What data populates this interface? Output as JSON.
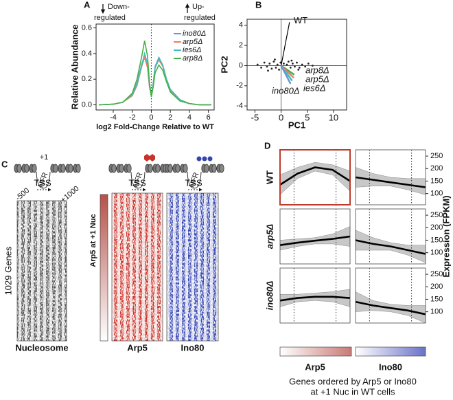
{
  "chart_data": [
    {
      "panel": "A",
      "type": "line",
      "ylabel": "Relative Abundance",
      "xlabel": "log2 Fold-Change Relative to WT",
      "annotations": [
        "Down-",
        "regulated",
        "Up-",
        "regulated"
      ],
      "x": [
        -5.5,
        -4,
        -3,
        -2,
        -1.5,
        -1,
        -0.7,
        -0.4,
        -0.2,
        0,
        0.2,
        0.4,
        0.8,
        1.2,
        1.6,
        2,
        3,
        4,
        5,
        6.3
      ],
      "series": [
        {
          "name": "ino80Δ",
          "color": "#6b96d6",
          "values": [
            0,
            0.005,
            0.02,
            0.08,
            0.17,
            0.32,
            0.38,
            0.3,
            0.15,
            0.07,
            0.17,
            0.3,
            0.37,
            0.31,
            0.2,
            0.12,
            0.04,
            0.01,
            0,
            0
          ]
        },
        {
          "name": "arp5Δ",
          "color": "#f07a6a",
          "values": [
            0,
            0.005,
            0.02,
            0.07,
            0.15,
            0.3,
            0.37,
            0.29,
            0.14,
            0.07,
            0.16,
            0.29,
            0.35,
            0.3,
            0.19,
            0.11,
            0.04,
            0.01,
            0,
            0
          ]
        },
        {
          "name": "ies6Δ",
          "color": "#3fbfb8",
          "values": [
            0,
            0.005,
            0.02,
            0.08,
            0.16,
            0.31,
            0.4,
            0.32,
            0.16,
            0.07,
            0.16,
            0.29,
            0.36,
            0.31,
            0.2,
            0.12,
            0.04,
            0.01,
            0,
            0
          ]
        },
        {
          "name": "arp8Δ",
          "color": "#45b045",
          "values": [
            0,
            0.005,
            0.02,
            0.09,
            0.2,
            0.38,
            0.5,
            0.38,
            0.18,
            0.06,
            0.14,
            0.25,
            0.31,
            0.27,
            0.18,
            0.1,
            0.03,
            0.01,
            0,
            0
          ]
        }
      ],
      "xlim": [
        -5.8,
        6.6
      ],
      "xticks": [
        -4,
        -2,
        0,
        2,
        4,
        6
      ],
      "ylim": [
        -0.04,
        0.63
      ],
      "yticks": [
        {
          "value": 0,
          "label": "0.0"
        },
        {
          "value": 0.2,
          "label": "0.2"
        },
        {
          "value": 0.4,
          "label": "0.4"
        },
        {
          "value": 0.6,
          "label": "0.6"
        }
      ],
      "vline": 0,
      "legend": "upper right"
    },
    {
      "panel": "B",
      "type": "scatter",
      "xlabel": "PC1",
      "ylabel": "PC2",
      "color": "#222222",
      "x": [
        -4.5,
        -3.8,
        -3.2,
        -2.7,
        -2.2,
        -1.8,
        -1.4,
        -1.0,
        -0.7,
        -0.4,
        -0.1,
        0.2,
        0.5,
        0.8,
        1.1,
        1.4,
        1.8,
        2.2,
        2.6,
        3.0,
        3.5,
        4.0,
        4.6,
        5.2,
        6.0,
        -2.5,
        -1.2,
        0.9,
        2.0,
        3.3
      ],
      "y": [
        0.1,
        -0.2,
        0.3,
        -0.1,
        0.2,
        -0.3,
        0.4,
        -0.2,
        0.1,
        -0.4,
        0.3,
        -0.1,
        0.2,
        -0.3,
        0.1,
        0.4,
        -0.2,
        0.2,
        -0.1,
        0.3,
        -0.2,
        0.1,
        -0.1,
        0.2,
        0.0,
        -0.5,
        0.6,
        -0.6,
        0.5,
        -0.4
      ],
      "vectors": [
        {
          "name": "WT",
          "color": "#000000",
          "x": 1.6,
          "y": 4.3
        },
        {
          "name": "arp8Δ",
          "color": "#45b045",
          "x": 2.5,
          "y": -0.9
        },
        {
          "name": "arp5Δ",
          "color": "#f07a6a",
          "x": 2.4,
          "y": -1.2
        },
        {
          "name": "ies6Δ",
          "color": "#3fbfb8",
          "x": 2.1,
          "y": -1.5
        },
        {
          "name": "ino80Δ",
          "color": "#6b96d6",
          "x": 1.8,
          "y": -1.8
        }
      ],
      "xlim": [
        -6.5,
        12.5
      ],
      "xticks": [
        -5,
        0,
        5,
        10
      ],
      "ylim": [
        -4.4,
        4.6
      ],
      "yticks": [
        -4,
        -2,
        0,
        2,
        4
      ]
    },
    {
      "panel": "C",
      "type": "heatmap",
      "nuc": "+1",
      "nfr": "NFR",
      "tss": "TSS",
      "start": "-500",
      "end": "+1000",
      "rows_label": "1029 Genes",
      "order_label": "Arp5 at +1 Nuc",
      "heatmaps": [
        {
          "name": "Nucleosome",
          "color": "#505050"
        },
        {
          "name": "Arp5",
          "color": "#c8342a"
        },
        {
          "name": "Ino80",
          "color": "#3545b0"
        }
      ]
    },
    {
      "panel": "D",
      "type": "line",
      "ylabel": "Expression (FPKM)",
      "rows": [
        "WT",
        "arp5Δ",
        "ino80Δ"
      ],
      "columns": [
        "Arp5",
        "Ino80"
      ],
      "caption": [
        "Genes ordered by Arp5 or Ino80",
        "at +1 Nuc in WT cells"
      ],
      "x": [
        0,
        0.25,
        0.5,
        0.75,
        1
      ],
      "vlines": [
        0.2,
        0.8
      ],
      "ylim": [
        55,
        275
      ],
      "yticks": [
        100,
        150,
        200,
        250
      ],
      "highlight": "#c0392b",
      "panels": [
        [
          {
            "fit": [
              135,
              180,
              205,
              195,
              150
            ],
            "lower": [
              95,
              160,
              190,
              175,
              110
            ],
            "upper": [
              175,
              205,
              225,
              215,
              190
            ]
          },
          {
            "fit": [
              165,
              155,
              145,
              135,
              125
            ],
            "lower": [
              125,
              130,
              130,
              115,
              95
            ],
            "upper": [
              205,
              180,
              165,
              160,
              160
            ]
          }
        ],
        [
          {
            "fit": [
              130,
              140,
              148,
              155,
              165
            ],
            "lower": [
              110,
              125,
              135,
              135,
              125
            ],
            "upper": [
              150,
              155,
              160,
              175,
              205
            ]
          },
          {
            "fit": [
              150,
              135,
              125,
              110,
              95
            ],
            "lower": [
              110,
              110,
              110,
              90,
              60
            ],
            "upper": [
              190,
              160,
              140,
              130,
              130
            ]
          }
        ],
        [
          {
            "fit": [
              145,
              155,
              160,
              160,
              155
            ],
            "lower": [
              120,
              140,
              145,
              140,
              120
            ],
            "upper": [
              170,
              170,
              175,
              180,
              190
            ]
          },
          {
            "fit": [
              140,
              125,
              115,
              105,
              90
            ],
            "lower": [
              100,
              105,
              100,
              85,
              55
            ],
            "upper": [
              180,
              145,
              130,
              125,
              125
            ]
          }
        ]
      ]
    }
  ]
}
